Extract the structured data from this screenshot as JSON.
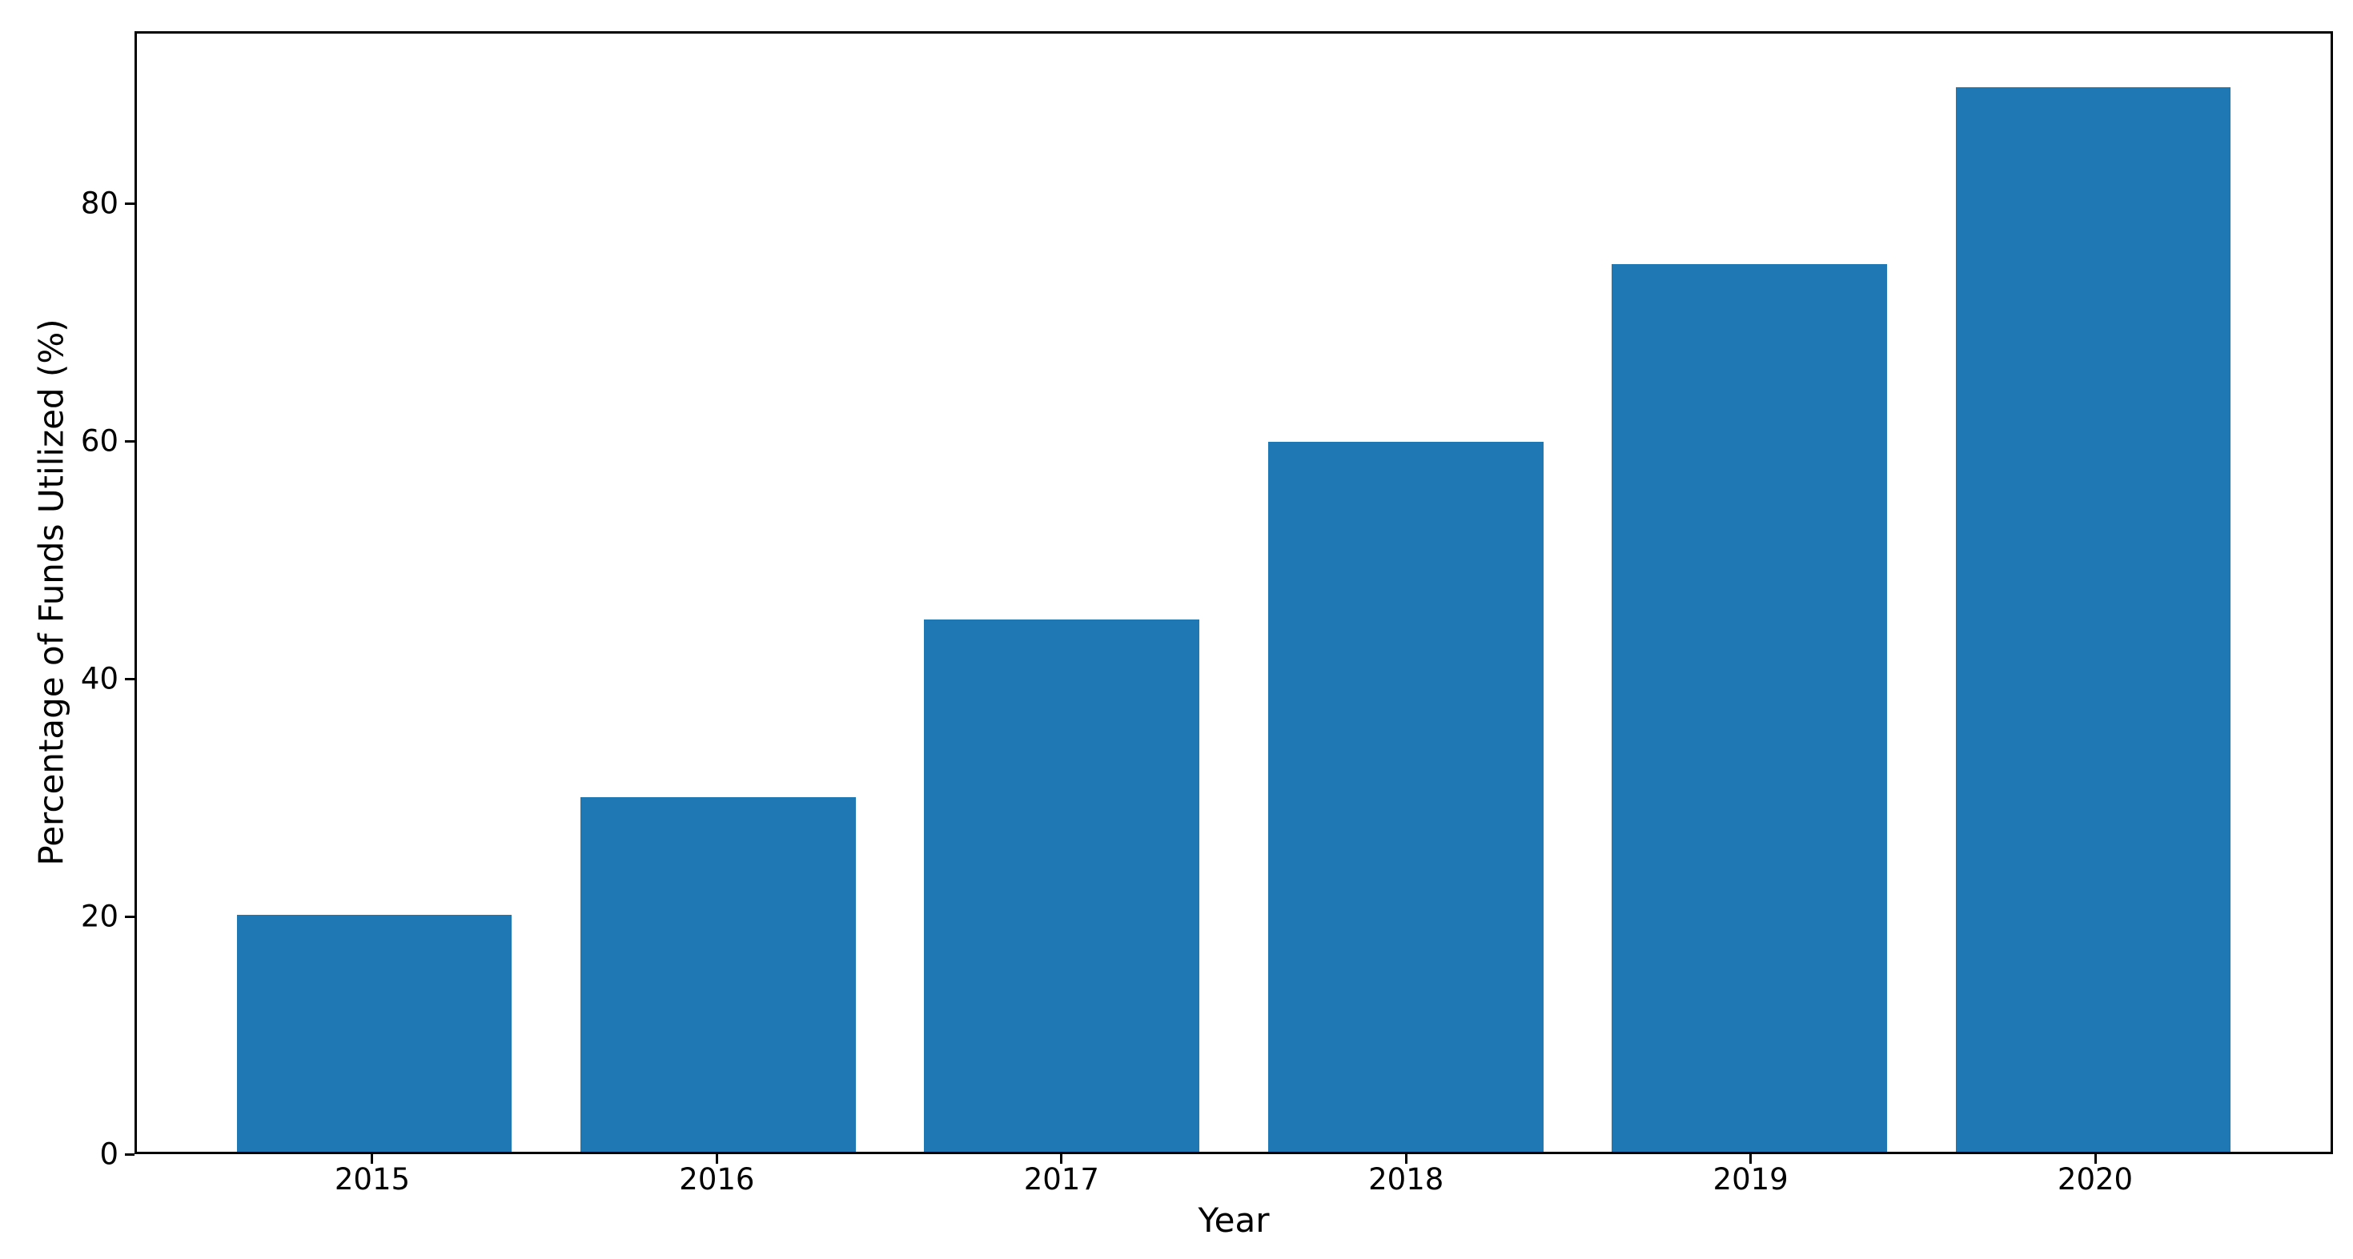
{
  "chart_data": {
    "type": "bar",
    "title": "",
    "categories": [
      "2015",
      "2016",
      "2017",
      "2018",
      "2019",
      "2020"
    ],
    "values": [
      20,
      30,
      45,
      60,
      75,
      90
    ],
    "xlabel": "Year",
    "ylabel": "Percentage of Funds Utilized (%)",
    "yticks": [
      0,
      20,
      40,
      60,
      80
    ],
    "ylim": [
      0,
      94.5
    ],
    "xlim": [
      -0.69,
      5.69
    ],
    "bar_width": 0.8,
    "bar_color": "#1f77b4",
    "axis_color": "#000000",
    "background_color": "#ffffff",
    "grid": false,
    "legend": "none"
  }
}
